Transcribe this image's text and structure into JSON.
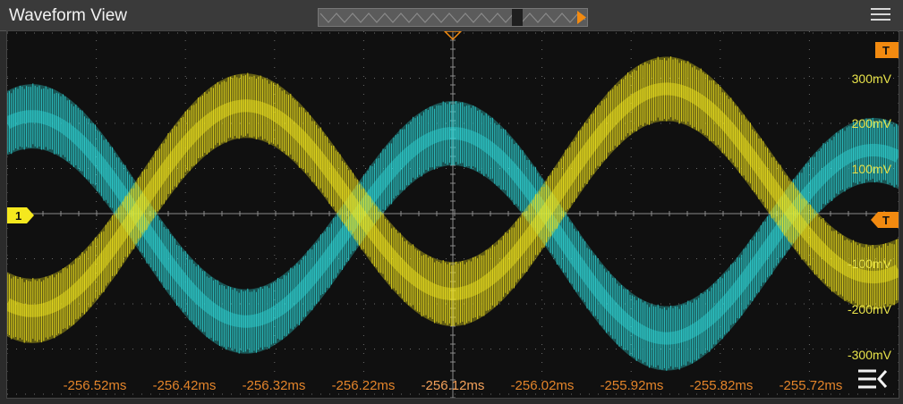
{
  "window": {
    "title": "Waveform View"
  },
  "channel": {
    "label": "1",
    "color": "#f5e81e"
  },
  "trigger": {
    "label": "T",
    "color": "#f28a10"
  },
  "y_axis": {
    "ticks": [
      "300mV",
      "200mV",
      "100mV",
      "-100mV",
      "-200mV",
      "-300mV"
    ],
    "unit": "mV"
  },
  "x_axis": {
    "ticks": [
      "-256.52ms",
      "-256.42ms",
      "-256.32ms",
      "-256.22ms",
      "-256.12ms",
      "-256.02ms",
      "-255.92ms",
      "-255.82ms",
      "-255.72ms"
    ]
  },
  "colors": {
    "background": "#101010",
    "grid": "#6a6a6a",
    "trace_yellow": "#f5e81e",
    "trace_cyan": "#2fd6d8",
    "axis_label_y": "#e8e34a",
    "axis_label_x": "#e3842a"
  },
  "icons": [
    "menu-icon",
    "collapse-panel-icon",
    "trigger-marker",
    "channel-1-marker"
  ]
}
